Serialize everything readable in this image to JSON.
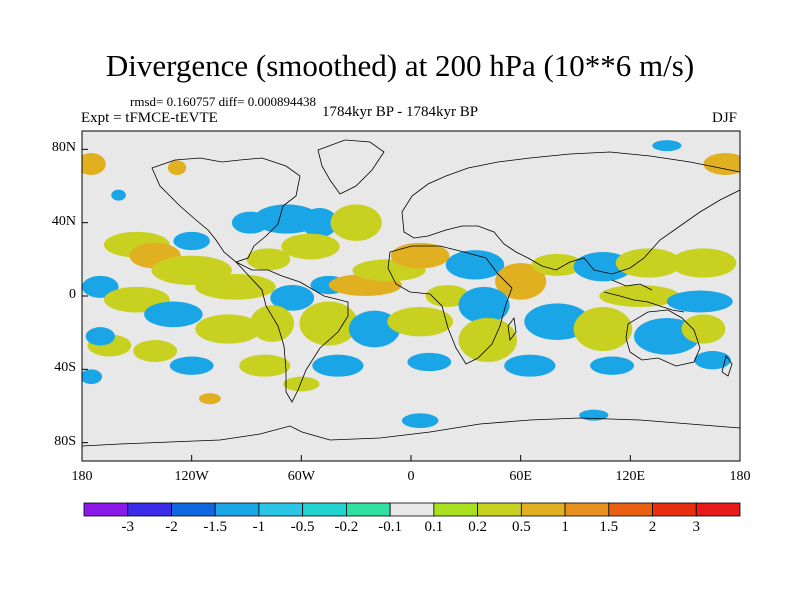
{
  "chart_data": {
    "type": "heatmap",
    "title": "Divergence (smoothed) at 200 hPa (10**6 m/s)",
    "stats": "rmsd= 0.160757 diff= 0.000894438",
    "experiment": "Expt = tFMCE-tEVTE",
    "period": "1784kyr BP - 1784kyr BP",
    "season": "DJF",
    "xlim": [
      -180,
      180
    ],
    "ylim": [
      -90,
      90
    ],
    "x_ticks": [
      {
        "value": -180,
        "label": "180"
      },
      {
        "value": -120,
        "label": "120W"
      },
      {
        "value": -60,
        "label": "60W"
      },
      {
        "value": 0,
        "label": "0"
      },
      {
        "value": 60,
        "label": "60E"
      },
      {
        "value": 120,
        "label": "120E"
      },
      {
        "value": 180,
        "label": "180"
      }
    ],
    "y_ticks": [
      {
        "value": 80,
        "label": "80N"
      },
      {
        "value": 40,
        "label": "40N"
      },
      {
        "value": 0,
        "label": "0"
      },
      {
        "value": -40,
        "label": "40S"
      },
      {
        "value": -80,
        "label": "80S"
      }
    ],
    "colorbar": {
      "levels": [
        "-3",
        "-2",
        "-1.5",
        "-1",
        "-0.5",
        "-0.2",
        "-0.1",
        "0.1",
        "0.2",
        "0.5",
        "1",
        "1.5",
        "2",
        "3"
      ],
      "colors": [
        "#8b1ae8",
        "#3a2ce8",
        "#1068e0",
        "#1aa6e6",
        "#2ac6e6",
        "#22d3cf",
        "#2fe0a0",
        "#e8e8e8",
        "#a8e020",
        "#c8d020",
        "#e0b020",
        "#e89020",
        "#e86010",
        "#e83010",
        "#e81a1a"
      ]
    },
    "fields": [
      {
        "lon": -175,
        "lat": 72,
        "w": 8,
        "h": 6,
        "level": 1
      },
      {
        "lon": 172,
        "lat": 72,
        "w": 12,
        "h": 6,
        "level": 1
      },
      {
        "lon": -128,
        "lat": 70,
        "w": 5,
        "h": 4,
        "level": 1
      },
      {
        "lon": 140,
        "lat": 82,
        "w": 8,
        "h": 3,
        "level": -1
      },
      {
        "lon": -160,
        "lat": 55,
        "w": 4,
        "h": 3,
        "level": -1
      },
      {
        "lon": -150,
        "lat": 28,
        "w": 18,
        "h": 7,
        "level": 0.5
      },
      {
        "lon": -140,
        "lat": 22,
        "w": 14,
        "h": 7,
        "level": 1
      },
      {
        "lon": -120,
        "lat": 30,
        "w": 10,
        "h": 5,
        "level": -1
      },
      {
        "lon": -88,
        "lat": 40,
        "w": 10,
        "h": 6,
        "level": -1
      },
      {
        "lon": -68,
        "lat": 42,
        "w": 18,
        "h": 8,
        "level": -1
      },
      {
        "lon": -50,
        "lat": 40,
        "w": 10,
        "h": 8,
        "level": -1
      },
      {
        "lon": -30,
        "lat": 40,
        "w": 14,
        "h": 10,
        "level": 0.5
      },
      {
        "lon": -55,
        "lat": 27,
        "w": 16,
        "h": 7,
        "level": 0.5
      },
      {
        "lon": -120,
        "lat": 14,
        "w": 22,
        "h": 8,
        "level": 0.5
      },
      {
        "lon": -96,
        "lat": 5,
        "w": 22,
        "h": 7,
        "level": 0.5
      },
      {
        "lon": -78,
        "lat": 20,
        "w": 12,
        "h": 6,
        "level": 0.5
      },
      {
        "lon": -65,
        "lat": -1,
        "w": 12,
        "h": 7,
        "level": -1
      },
      {
        "lon": -45,
        "lat": 6,
        "w": 10,
        "h": 5,
        "level": -1
      },
      {
        "lon": -25,
        "lat": 6,
        "w": 20,
        "h": 6,
        "level": 1
      },
      {
        "lon": -12,
        "lat": 14,
        "w": 20,
        "h": 6,
        "level": 0.5
      },
      {
        "lon": 5,
        "lat": 22,
        "w": 16,
        "h": 7,
        "level": 1
      },
      {
        "lon": 35,
        "lat": 17,
        "w": 16,
        "h": 8,
        "level": -1
      },
      {
        "lon": 60,
        "lat": 8,
        "w": 14,
        "h": 10,
        "level": 1
      },
      {
        "lon": 80,
        "lat": 17,
        "w": 14,
        "h": 6,
        "level": 0.5
      },
      {
        "lon": 105,
        "lat": 16,
        "w": 16,
        "h": 8,
        "level": -1
      },
      {
        "lon": 130,
        "lat": 18,
        "w": 18,
        "h": 8,
        "level": 0.5
      },
      {
        "lon": 160,
        "lat": 18,
        "w": 18,
        "h": 8,
        "level": 0.5
      },
      {
        "lon": 125,
        "lat": 0,
        "w": 22,
        "h": 6,
        "level": 0.5
      },
      {
        "lon": 158,
        "lat": -3,
        "w": 18,
        "h": 6,
        "level": -1
      },
      {
        "lon": -170,
        "lat": 5,
        "w": 10,
        "h": 6,
        "level": -1
      },
      {
        "lon": -150,
        "lat": -2,
        "w": 18,
        "h": 7,
        "level": 0.5
      },
      {
        "lon": -130,
        "lat": -10,
        "w": 16,
        "h": 7,
        "level": -1
      },
      {
        "lon": -100,
        "lat": -18,
        "w": 18,
        "h": 8,
        "level": 0.5
      },
      {
        "lon": -76,
        "lat": -15,
        "w": 12,
        "h": 10,
        "level": 0.5
      },
      {
        "lon": -45,
        "lat": -15,
        "w": 16,
        "h": 12,
        "level": 0.5
      },
      {
        "lon": -20,
        "lat": -18,
        "w": 14,
        "h": 10,
        "level": -1
      },
      {
        "lon": 5,
        "lat": -14,
        "w": 18,
        "h": 8,
        "level": 0.5
      },
      {
        "lon": 20,
        "lat": 0,
        "w": 12,
        "h": 6,
        "level": 0.5
      },
      {
        "lon": 40,
        "lat": -5,
        "w": 14,
        "h": 10,
        "level": -1
      },
      {
        "lon": 42,
        "lat": -24,
        "w": 16,
        "h": 12,
        "level": 0.5
      },
      {
        "lon": 80,
        "lat": -14,
        "w": 18,
        "h": 10,
        "level": -1
      },
      {
        "lon": 105,
        "lat": -18,
        "w": 16,
        "h": 12,
        "level": 0.5
      },
      {
        "lon": 140,
        "lat": -22,
        "w": 18,
        "h": 10,
        "level": -1
      },
      {
        "lon": 160,
        "lat": -18,
        "w": 12,
        "h": 8,
        "level": 0.5
      },
      {
        "lon": -165,
        "lat": -27,
        "w": 12,
        "h": 6,
        "level": 0.5
      },
      {
        "lon": -170,
        "lat": -22,
        "w": 8,
        "h": 5,
        "level": -1
      },
      {
        "lon": -140,
        "lat": -30,
        "w": 12,
        "h": 6,
        "level": 0.5
      },
      {
        "lon": -120,
        "lat": -38,
        "w": 12,
        "h": 5,
        "level": -1
      },
      {
        "lon": -80,
        "lat": -38,
        "w": 14,
        "h": 6,
        "level": 0.5
      },
      {
        "lon": -40,
        "lat": -38,
        "w": 14,
        "h": 6,
        "level": -1
      },
      {
        "lon": 10,
        "lat": -36,
        "w": 12,
        "h": 5,
        "level": -1
      },
      {
        "lon": 65,
        "lat": -38,
        "w": 14,
        "h": 6,
        "level": -1
      },
      {
        "lon": 110,
        "lat": -38,
        "w": 12,
        "h": 5,
        "level": -1
      },
      {
        "lon": 165,
        "lat": -35,
        "w": 10,
        "h": 5,
        "level": -1
      },
      {
        "lon": -60,
        "lat": -48,
        "w": 10,
        "h": 4,
        "level": 0.5
      },
      {
        "lon": -175,
        "lat": -44,
        "w": 6,
        "h": 4,
        "level": -1
      },
      {
        "lon": 5,
        "lat": -68,
        "w": 10,
        "h": 4,
        "level": -1
      },
      {
        "lon": 100,
        "lat": -65,
        "w": 8,
        "h": 3,
        "level": -1
      },
      {
        "lon": -110,
        "lat": -56,
        "w": 6,
        "h": 3,
        "level": 1
      }
    ]
  }
}
